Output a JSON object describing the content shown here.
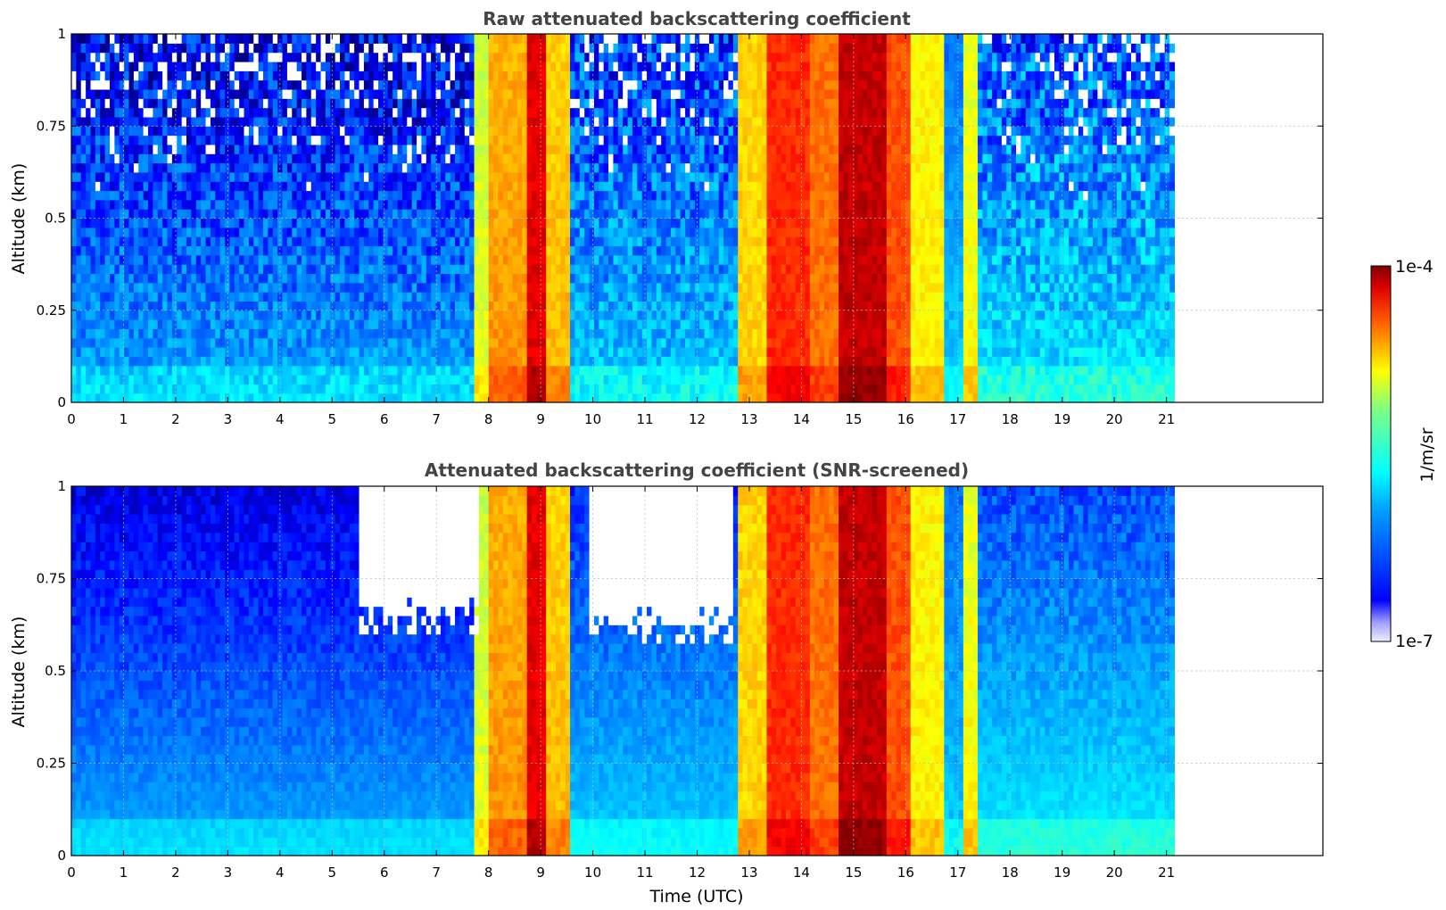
{
  "chart_data": [
    {
      "type": "heatmap",
      "title": "Raw attenuated backscattering coefficient",
      "xlabel": "",
      "ylabel": "Altitude (km)",
      "xlim": [
        0,
        24
      ],
      "ylim": [
        0,
        1
      ],
      "xticks": [
        0,
        1,
        2,
        3,
        4,
        5,
        6,
        7,
        8,
        9,
        10,
        11,
        12,
        13,
        14,
        15,
        16,
        17,
        18,
        19,
        20,
        21
      ],
      "yticks": [
        0,
        0.25,
        0.5,
        0.75,
        1
      ],
      "ytick_labels": [
        "0",
        "0.25",
        "0.5",
        "0.75",
        "1"
      ],
      "grid": true,
      "data_time_range": [
        0,
        21.15
      ],
      "colorscale": "jet",
      "log_color_scale": true,
      "profiles": [
        {
          "t": [
            0.0,
            7.75
          ],
          "bottom_log": -6.1,
          "top_log": -6.7,
          "noise": true
        },
        {
          "t": [
            7.75,
            8.0
          ],
          "bottom_log": -5.2,
          "top_log": -5.3
        },
        {
          "t": [
            8.0,
            8.7
          ],
          "bottom_log": -4.8,
          "top_log": -4.9
        },
        {
          "t": [
            8.7,
            9.1
          ],
          "bottom_log": -4.3,
          "top_log": -4.3
        },
        {
          "t": [
            9.1,
            9.6
          ],
          "bottom_log": -4.9,
          "top_log": -5.0
        },
        {
          "t": [
            9.6,
            12.8
          ],
          "bottom_log": -6.0,
          "top_log": -6.5,
          "noise": true
        },
        {
          "t": [
            12.8,
            13.3
          ],
          "bottom_log": -5.0,
          "top_log": -5.0
        },
        {
          "t": [
            13.3,
            14.2
          ],
          "bottom_log": -4.5,
          "top_log": -4.5
        },
        {
          "t": [
            14.2,
            14.7
          ],
          "bottom_log": -4.7,
          "top_log": -4.7
        },
        {
          "t": [
            14.7,
            15.6
          ],
          "bottom_log": -4.2,
          "top_log": -4.2
        },
        {
          "t": [
            15.6,
            16.1
          ],
          "bottom_log": -4.6,
          "top_log": -4.6
        },
        {
          "t": [
            16.1,
            16.7
          ],
          "bottom_log": -5.1,
          "top_log": -5.1
        },
        {
          "t": [
            16.7,
            17.1
          ],
          "bottom_log": -6.0,
          "top_log": -6.3
        },
        {
          "t": [
            17.1,
            17.4
          ],
          "bottom_log": -5.1,
          "top_log": -5.2
        },
        {
          "t": [
            17.4,
            21.15
          ],
          "bottom_log": -5.9,
          "top_log": -6.4,
          "noise": true
        }
      ]
    },
    {
      "type": "heatmap",
      "title": "Attenuated backscattering coefficient (SNR-screened)",
      "xlabel": "Time (UTC)",
      "ylabel": "Altitude (km)",
      "xlim": [
        0,
        24
      ],
      "ylim": [
        0,
        1
      ],
      "xticks": [
        0,
        1,
        2,
        3,
        4,
        5,
        6,
        7,
        8,
        9,
        10,
        11,
        12,
        13,
        14,
        15,
        16,
        17,
        18,
        19,
        20,
        21
      ],
      "yticks": [
        0,
        0.25,
        0.5,
        0.75,
        1
      ],
      "ytick_labels": [
        "0",
        "0.25",
        "0.5",
        "0.75",
        "1"
      ],
      "grid": true,
      "data_time_range": [
        0,
        21.15
      ],
      "colorscale": "jet",
      "log_color_scale": true,
      "screened_regions": [
        {
          "t": [
            5.5,
            7.8
          ],
          "altitude": [
            0.65,
            1.0
          ]
        },
        {
          "t": [
            9.9,
            12.7
          ],
          "altitude": [
            0.62,
            1.0
          ]
        }
      ]
    }
  ],
  "colorbar": {
    "label": "1/m/sr",
    "max_label": "1e-4",
    "min_label": "1e-7",
    "range_log": [
      -7,
      -4
    ],
    "placement": "right"
  },
  "colors": {
    "axes": "#000000",
    "title": "#444444",
    "grid": "#bbbbbb"
  }
}
